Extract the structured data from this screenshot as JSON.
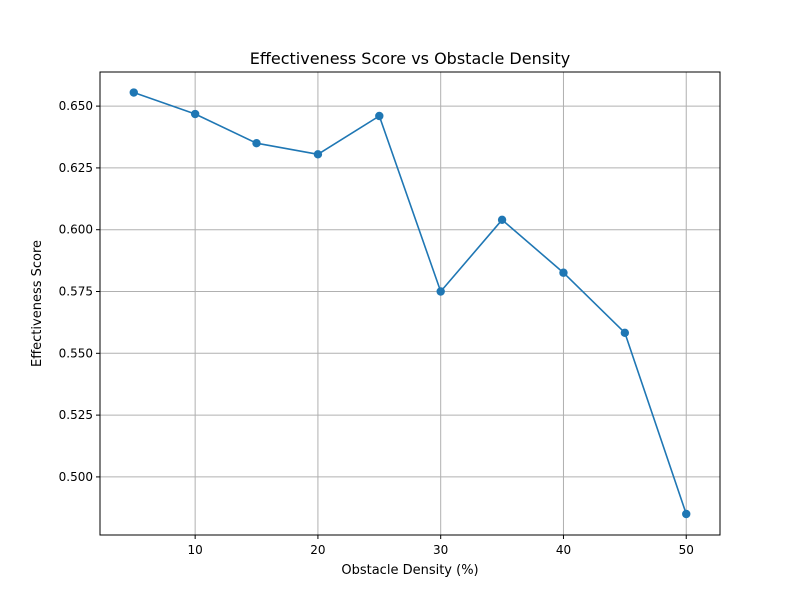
{
  "chart_data": {
    "type": "line",
    "title": "Effectiveness Score vs Obstacle Density",
    "xlabel": "Obstacle Density (%)",
    "ylabel": "Effectiveness Score",
    "x": [
      5,
      10,
      15,
      20,
      25,
      30,
      35,
      40,
      45,
      50
    ],
    "series": [
      {
        "values": [
          0.6555,
          0.6468,
          0.635,
          0.6305,
          0.646,
          0.575,
          0.604,
          0.5826,
          0.5583,
          0.485
        ],
        "color": "#1f77b4",
        "marker": "circle"
      }
    ],
    "xlim": [
      2.25,
      52.75
    ],
    "ylim": [
      0.4765,
      0.6638
    ],
    "xticks": [
      10,
      20,
      30,
      40,
      50
    ],
    "xtick_labels": [
      "10",
      "20",
      "30",
      "40",
      "50"
    ],
    "yticks": [
      0.5,
      0.525,
      0.55,
      0.575,
      0.6,
      0.625,
      0.65
    ],
    "ytick_labels": [
      "0.500",
      "0.525",
      "0.550",
      "0.575",
      "0.600",
      "0.625",
      "0.650"
    ],
    "grid": true,
    "legend": false
  }
}
